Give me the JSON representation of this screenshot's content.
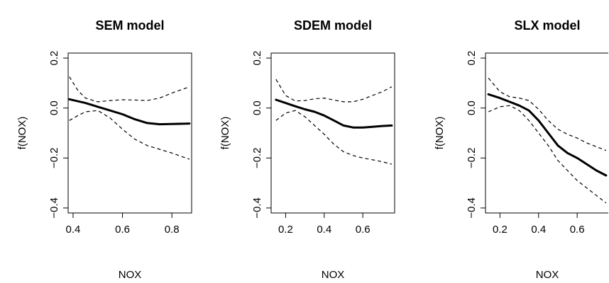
{
  "chart_data": [
    {
      "type": "line",
      "title": "SEM model",
      "xlabel": "NOX",
      "ylabel": "f(NOX)",
      "xlim": [
        0.38,
        0.88
      ],
      "ylim": [
        -0.42,
        0.22
      ],
      "xticks": [
        0.4,
        0.6,
        0.8
      ],
      "xtick_labels": [
        "0.4",
        "0.6",
        "0.8"
      ],
      "yticks": [
        -0.4,
        -0.2,
        0.0,
        0.2
      ],
      "ytick_labels": [
        "−0.4",
        "−0.2",
        "0.0",
        "0.2"
      ],
      "grid": false,
      "series": [
        {
          "style": "solid",
          "x": [
            0.385,
            0.45,
            0.5,
            0.55,
            0.6,
            0.65,
            0.7,
            0.75,
            0.8,
            0.871
          ],
          "y": [
            0.035,
            0.02,
            0.005,
            -0.01,
            -0.025,
            -0.045,
            -0.06,
            -0.065,
            -0.064,
            -0.062
          ]
        },
        {
          "style": "dashed",
          "x": [
            0.385,
            0.42,
            0.45,
            0.5,
            0.55,
            0.6,
            0.65,
            0.7,
            0.75,
            0.8,
            0.871
          ],
          "y": [
            0.125,
            0.07,
            0.04,
            0.025,
            0.03,
            0.033,
            0.032,
            0.03,
            0.04,
            0.06,
            0.085
          ]
        },
        {
          "style": "dashed",
          "x": [
            0.385,
            0.42,
            0.45,
            0.5,
            0.55,
            0.6,
            0.65,
            0.7,
            0.75,
            0.8,
            0.871
          ],
          "y": [
            -0.05,
            -0.03,
            -0.015,
            -0.01,
            -0.04,
            -0.085,
            -0.125,
            -0.15,
            -0.165,
            -0.18,
            -0.205
          ]
        }
      ]
    },
    {
      "type": "line",
      "title": "SDEM model",
      "xlabel": "NOX",
      "ylabel": "f(NOX)",
      "xlim": [
        0.125,
        0.765
      ],
      "ylim": [
        -0.42,
        0.22
      ],
      "xticks": [
        0.2,
        0.4,
        0.6
      ],
      "xtick_labels": [
        "0.2",
        "0.4",
        "0.6"
      ],
      "yticks": [
        -0.4,
        -0.2,
        0.0,
        0.2
      ],
      "ytick_labels": [
        "−0.4",
        "−0.2",
        "0.0",
        "0.2"
      ],
      "grid": false,
      "series": [
        {
          "style": "solid",
          "x": [
            0.15,
            0.2,
            0.25,
            0.3,
            0.35,
            0.4,
            0.45,
            0.5,
            0.55,
            0.6,
            0.65,
            0.7,
            0.75
          ],
          "y": [
            0.033,
            0.02,
            0.007,
            -0.005,
            -0.015,
            -0.03,
            -0.05,
            -0.07,
            -0.078,
            -0.078,
            -0.075,
            -0.072,
            -0.07
          ]
        },
        {
          "style": "dashed",
          "x": [
            0.15,
            0.2,
            0.25,
            0.3,
            0.35,
            0.4,
            0.45,
            0.5,
            0.55,
            0.6,
            0.65,
            0.7,
            0.75
          ],
          "y": [
            0.115,
            0.05,
            0.028,
            0.03,
            0.037,
            0.04,
            0.032,
            0.025,
            0.025,
            0.035,
            0.05,
            0.065,
            0.085
          ]
        },
        {
          "style": "dashed",
          "x": [
            0.15,
            0.2,
            0.25,
            0.3,
            0.35,
            0.4,
            0.45,
            0.5,
            0.55,
            0.6,
            0.65,
            0.7,
            0.75
          ],
          "y": [
            -0.05,
            -0.02,
            -0.01,
            -0.035,
            -0.07,
            -0.105,
            -0.145,
            -0.175,
            -0.19,
            -0.2,
            -0.207,
            -0.215,
            -0.225
          ]
        }
      ]
    },
    {
      "type": "line",
      "title": "SLX model",
      "xlabel": "NOX",
      "ylabel": "f(NOX)",
      "xlim": [
        0.125,
        0.765
      ],
      "ylim": [
        -0.42,
        0.22
      ],
      "xticks": [
        0.2,
        0.4,
        0.6
      ],
      "xtick_labels": [
        "0.2",
        "0.4",
        "0.6"
      ],
      "yticks": [
        -0.4,
        -0.2,
        0.0,
        0.2
      ],
      "ytick_labels": [
        "−0.4",
        "−0.2",
        "0.0",
        "0.2"
      ],
      "grid": false,
      "series": [
        {
          "style": "solid",
          "x": [
            0.14,
            0.2,
            0.25,
            0.3,
            0.35,
            0.4,
            0.45,
            0.5,
            0.55,
            0.6,
            0.65,
            0.7,
            0.75
          ],
          "y": [
            0.055,
            0.04,
            0.025,
            0.01,
            -0.01,
            -0.05,
            -0.1,
            -0.15,
            -0.18,
            -0.2,
            -0.225,
            -0.25,
            -0.27
          ]
        },
        {
          "style": "dashed",
          "x": [
            0.14,
            0.2,
            0.25,
            0.3,
            0.35,
            0.4,
            0.45,
            0.5,
            0.55,
            0.6,
            0.65,
            0.7,
            0.75
          ],
          "y": [
            0.12,
            0.065,
            0.045,
            0.04,
            0.03,
            -0.005,
            -0.05,
            -0.085,
            -0.105,
            -0.12,
            -0.14,
            -0.155,
            -0.17
          ]
        },
        {
          "style": "dashed",
          "x": [
            0.14,
            0.2,
            0.25,
            0.3,
            0.35,
            0.4,
            0.45,
            0.5,
            0.55,
            0.6,
            0.65,
            0.7,
            0.75
          ],
          "y": [
            -0.015,
            0.005,
            0.01,
            -0.01,
            -0.05,
            -0.1,
            -0.15,
            -0.21,
            -0.25,
            -0.29,
            -0.32,
            -0.35,
            -0.38
          ]
        }
      ]
    }
  ]
}
